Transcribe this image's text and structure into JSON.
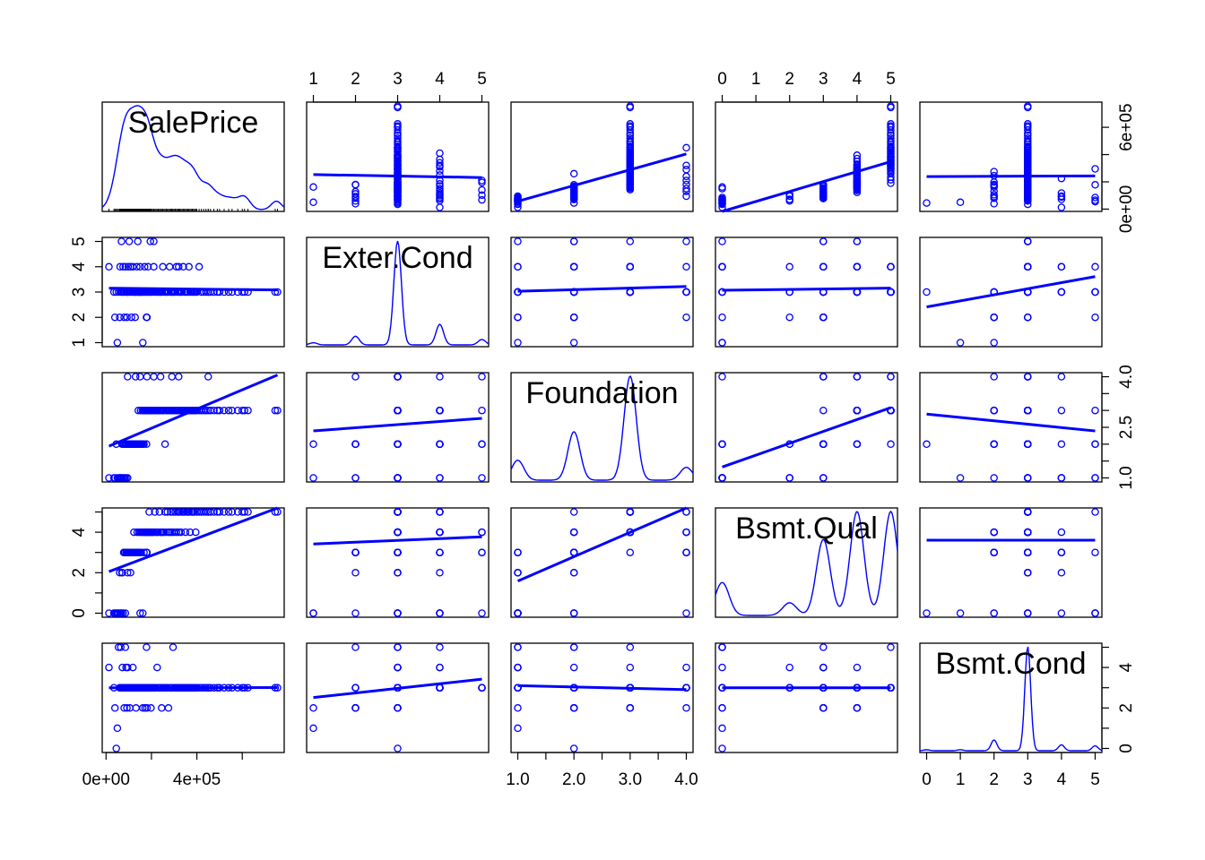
{
  "chart_data": {
    "type": "scatter",
    "variables": [
      "SalePrice",
      "Exter.Cond",
      "Foundation",
      "Bsmt.Qual",
      "Bsmt.Cond"
    ],
    "diagonal": "density curve with variable name",
    "upper_panels": "scatter with linear fit",
    "lower_panels": "scatter with linear fit",
    "colors": {
      "points": "#0000FF",
      "fit": "#0000FF",
      "density": "#0000FF",
      "axes": "#000000",
      "rug": "#000000"
    },
    "point_style": "open circle",
    "ranges": {
      "SalePrice": [
        12789,
        755000
      ],
      "Exter.Cond": [
        1,
        5
      ],
      "Foundation": [
        1,
        4
      ],
      "Bsmt.Qual": [
        0,
        5
      ],
      "Bsmt.Cond": [
        0,
        5
      ]
    },
    "axis_ticks": {
      "top": [
        {
          "column": "Exter.Cond",
          "ticks": [
            1,
            2,
            3,
            4,
            5
          ],
          "labels": [
            "1",
            "2",
            "3",
            "4",
            "5"
          ]
        },
        {
          "column": "Bsmt.Qual",
          "ticks": [
            0,
            1,
            2,
            3,
            4,
            5
          ],
          "labels": [
            "0",
            "1",
            "2",
            "3",
            "4",
            "5"
          ]
        }
      ],
      "bottom": [
        {
          "column": "SalePrice",
          "ticks": [
            0,
            200000,
            400000,
            600000
          ],
          "labels": [
            "0e+00",
            "",
            "4e+05",
            ""
          ]
        },
        {
          "column": "Foundation",
          "ticks": [
            1,
            1.5,
            2,
            2.5,
            3,
            3.5,
            4
          ],
          "labels": [
            "1.0",
            "",
            "2.0",
            "",
            "3.0",
            "",
            "4.0"
          ]
        },
        {
          "column": "Bsmt.Cond",
          "ticks": [
            0,
            1,
            2,
            3,
            4,
            5
          ],
          "labels": [
            "0",
            "1",
            "2",
            "3",
            "4",
            "5"
          ]
        }
      ],
      "left": [
        {
          "row": "Exter.Cond",
          "ticks": [
            1,
            2,
            3,
            4,
            5
          ],
          "labels": [
            "1",
            "2",
            "3",
            "4",
            "5"
          ]
        },
        {
          "row": "Bsmt.Qual",
          "ticks": [
            0,
            1,
            2,
            3,
            4,
            5
          ],
          "labels": [
            "0",
            "",
            "2",
            "",
            "4",
            ""
          ]
        }
      ],
      "right": [
        {
          "row": "SalePrice",
          "ticks": [
            0,
            200000,
            400000,
            600000
          ],
          "labels": [
            "0e+00",
            "",
            "",
            "6e+05"
          ]
        },
        {
          "row": "Foundation",
          "ticks": [
            1,
            1.5,
            2,
            2.5,
            3,
            3.5,
            4
          ],
          "labels": [
            "1.0",
            "",
            "",
            "2.5",
            "",
            "",
            "4.0"
          ]
        },
        {
          "row": "Bsmt.Cond",
          "ticks": [
            0,
            1,
            2,
            3,
            4,
            5
          ],
          "labels": [
            "0",
            "",
            "2",
            "",
            "4",
            ""
          ]
        }
      ]
    },
    "observations": [
      [
        12789,
        4,
        1,
        0,
        4
      ],
      [
        35000,
        3,
        1,
        0,
        3
      ],
      [
        39300,
        2,
        1,
        0,
        2
      ],
      [
        45000,
        3,
        2,
        0,
        0
      ],
      [
        50000,
        1,
        1,
        0,
        1
      ],
      [
        55000,
        3,
        1,
        0,
        5
      ],
      [
        60000,
        2,
        1,
        2,
        3
      ],
      [
        62000,
        4,
        1,
        0,
        3
      ],
      [
        65000,
        3,
        1,
        0,
        5
      ],
      [
        68000,
        5,
        1,
        0,
        3
      ],
      [
        70000,
        3,
        2,
        2,
        3
      ],
      [
        72000,
        3,
        1,
        2,
        4
      ],
      [
        75000,
        4,
        2,
        0,
        3
      ],
      [
        78000,
        3,
        1,
        3,
        3
      ],
      [
        80000,
        2,
        2,
        3,
        2
      ],
      [
        82000,
        3,
        1,
        3,
        3
      ],
      [
        85000,
        4,
        2,
        0,
        5
      ],
      [
        88000,
        3,
        1,
        3,
        4
      ],
      [
        90000,
        3,
        2,
        3,
        3
      ],
      [
        92000,
        2,
        2,
        3,
        2
      ],
      [
        95000,
        3,
        1,
        2,
        3
      ],
      [
        98000,
        4,
        2,
        3,
        3
      ],
      [
        100000,
        3,
        2,
        3,
        3
      ],
      [
        102000,
        5,
        2,
        3,
        3
      ],
      [
        105000,
        3,
        2,
        3,
        2
      ],
      [
        108000,
        4,
        2,
        2,
        3
      ],
      [
        110000,
        3,
        2,
        3,
        3
      ],
      [
        112000,
        2,
        2,
        3,
        3
      ],
      [
        115000,
        3,
        2,
        3,
        3
      ],
      [
        118000,
        4,
        2,
        3,
        4
      ],
      [
        120000,
        3,
        2,
        3,
        3
      ],
      [
        123000,
        3,
        2,
        4,
        3
      ],
      [
        125000,
        3,
        2,
        3,
        3
      ],
      [
        128000,
        2,
        2,
        3,
        3
      ],
      [
        130000,
        3,
        2,
        3,
        3
      ],
      [
        132000,
        3,
        2,
        3,
        2
      ],
      [
        135000,
        4,
        2,
        3,
        3
      ],
      [
        137000,
        3,
        2,
        4,
        3
      ],
      [
        140000,
        5,
        2,
        3,
        3
      ],
      [
        142000,
        3,
        3,
        3,
        3
      ],
      [
        145000,
        3,
        2,
        4,
        3
      ],
      [
        147000,
        3,
        2,
        3,
        3
      ],
      [
        150000,
        4,
        2,
        3,
        3
      ],
      [
        152000,
        3,
        3,
        4,
        3
      ],
      [
        155000,
        3,
        2,
        3,
        3
      ],
      [
        157000,
        3,
        2,
        4,
        3
      ],
      [
        160000,
        3,
        3,
        4,
        3
      ],
      [
        162000,
        1,
        2,
        0,
        2
      ],
      [
        165000,
        3,
        3,
        4,
        3
      ],
      [
        167000,
        3,
        2,
        3,
        3
      ],
      [
        170000,
        4,
        3,
        4,
        3
      ],
      [
        172000,
        3,
        3,
        4,
        2
      ],
      [
        175000,
        3,
        3,
        4,
        3
      ],
      [
        178000,
        2,
        2,
        3,
        5
      ],
      [
        180000,
        3,
        3,
        4,
        3
      ],
      [
        183000,
        3,
        3,
        4,
        3
      ],
      [
        185000,
        4,
        3,
        4,
        3
      ],
      [
        188000,
        3,
        3,
        4,
        3
      ],
      [
        190000,
        3,
        3,
        5,
        3
      ],
      [
        193000,
        3,
        3,
        4,
        3
      ],
      [
        195000,
        5,
        3,
        4,
        3
      ],
      [
        198000,
        3,
        3,
        4,
        2
      ],
      [
        200000,
        3,
        3,
        4,
        3
      ],
      [
        205000,
        3,
        3,
        4,
        3
      ],
      [
        210000,
        4,
        3,
        4,
        3
      ],
      [
        215000,
        3,
        3,
        5,
        3
      ],
      [
        220000,
        3,
        3,
        4,
        3
      ],
      [
        225000,
        3,
        3,
        4,
        4
      ],
      [
        230000,
        3,
        3,
        4,
        3
      ],
      [
        235000,
        3,
        3,
        5,
        3
      ],
      [
        240000,
        3,
        3,
        4,
        3
      ],
      [
        245000,
        3,
        3,
        4,
        2
      ],
      [
        250000,
        4,
        3,
        4,
        3
      ],
      [
        255000,
        3,
        3,
        4,
        3
      ],
      [
        260000,
        3,
        2,
        5,
        3
      ],
      [
        265000,
        3,
        3,
        4,
        3
      ],
      [
        270000,
        3,
        3,
        5,
        3
      ],
      [
        275000,
        3,
        3,
        4,
        2
      ],
      [
        280000,
        4,
        3,
        4,
        3
      ],
      [
        285000,
        3,
        3,
        5,
        3
      ],
      [
        290000,
        3,
        3,
        4,
        3
      ],
      [
        295000,
        3,
        3,
        5,
        5
      ],
      [
        300000,
        3,
        3,
        4,
        3
      ],
      [
        305000,
        3,
        3,
        5,
        3
      ],
      [
        310000,
        4,
        3,
        4,
        3
      ],
      [
        315000,
        3,
        3,
        5,
        3
      ],
      [
        320000,
        3,
        3,
        4,
        3
      ],
      [
        325000,
        3,
        3,
        5,
        3
      ],
      [
        330000,
        3,
        3,
        4,
        3
      ],
      [
        335000,
        3,
        3,
        5,
        3
      ],
      [
        340000,
        4,
        3,
        5,
        3
      ],
      [
        345000,
        3,
        3,
        5,
        3
      ],
      [
        350000,
        3,
        3,
        4,
        3
      ],
      [
        355000,
        3,
        3,
        5,
        3
      ],
      [
        360000,
        3,
        3,
        5,
        3
      ],
      [
        365000,
        4,
        3,
        5,
        3
      ],
      [
        370000,
        3,
        3,
        4,
        3
      ],
      [
        375000,
        3,
        3,
        5,
        3
      ],
      [
        380000,
        3,
        3,
        5,
        3
      ],
      [
        385000,
        3,
        3,
        5,
        3
      ],
      [
        390000,
        3,
        3,
        5,
        3
      ],
      [
        395000,
        3,
        3,
        4,
        3
      ],
      [
        400000,
        3,
        3,
        5,
        3
      ],
      [
        410000,
        4,
        3,
        5,
        3
      ],
      [
        420000,
        3,
        3,
        5,
        3
      ],
      [
        430000,
        3,
        3,
        5,
        3
      ],
      [
        440000,
        3,
        3,
        5,
        3
      ],
      [
        450000,
        3,
        3,
        5,
        3
      ],
      [
        460000,
        3,
        3,
        5,
        3
      ],
      [
        475000,
        3,
        3,
        5,
        3
      ],
      [
        490000,
        3,
        3,
        5,
        3
      ],
      [
        500000,
        3,
        3,
        5,
        3
      ],
      [
        520000,
        3,
        3,
        5,
        3
      ],
      [
        540000,
        3,
        3,
        5,
        3
      ],
      [
        555000,
        3,
        3,
        5,
        3
      ],
      [
        580000,
        3,
        3,
        5,
        3
      ],
      [
        600000,
        3,
        3,
        5,
        3
      ],
      [
        610000,
        3,
        3,
        5,
        3
      ],
      [
        625000,
        3,
        3,
        5,
        3
      ],
      [
        745000,
        3,
        3,
        5,
        3
      ],
      [
        755000,
        3,
        3,
        5,
        3
      ],
      [
        130000,
        3,
        4,
        3,
        3
      ],
      [
        240000,
        3,
        4,
        4,
        3
      ],
      [
        320000,
        4,
        4,
        5,
        3
      ],
      [
        210000,
        5,
        4,
        4,
        3
      ],
      [
        180000,
        2,
        4,
        3,
        2
      ],
      [
        95000,
        3,
        4,
        3,
        4
      ],
      [
        150000,
        3,
        4,
        0,
        3
      ],
      [
        450000,
        3,
        4,
        5,
        3
      ],
      [
        290000,
        3,
        4,
        4,
        3
      ]
    ]
  }
}
